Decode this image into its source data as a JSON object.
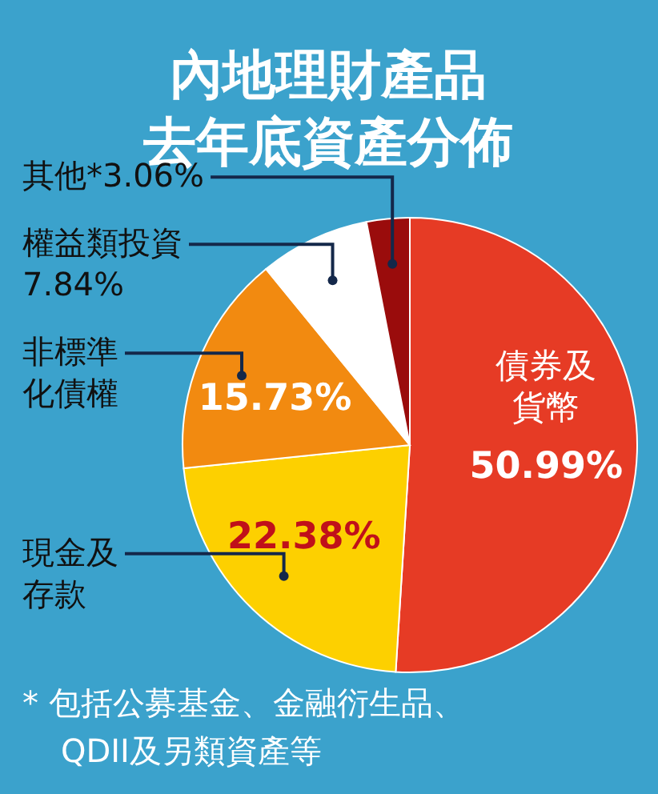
{
  "chart_data": {
    "type": "pie",
    "title": "內地理財產品去年底資產分佈",
    "categories": [
      "債券及貨幣",
      "現金及存款",
      "非標準化債權",
      "權益類投資",
      "其他*"
    ],
    "values": [
      50.99,
      22.38,
      15.73,
      7.84,
      3.06
    ],
    "colors": [
      "#e63b25",
      "#fdd000",
      "#f28a10",
      "#ffffff",
      "#9a0c0c"
    ],
    "value_labels": [
      "50.99%",
      "22.38%",
      "15.73%",
      "7.84%",
      "3.06%"
    ],
    "annotations": [
      "* 包括公募基金、金融衍生品、QDII及另類資產等"
    ],
    "legend": false
  }
}
